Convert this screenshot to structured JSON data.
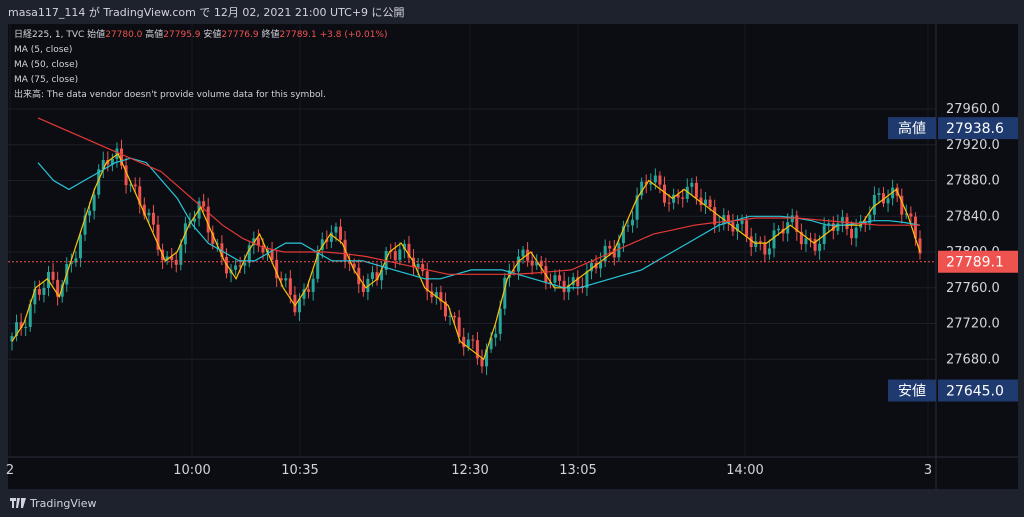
{
  "header": {
    "publish_line": "masa117_114 が TradingView.com で 12月 02, 2021 21:00 UTC+9 に公開"
  },
  "legend": {
    "symbol": "日経225, 1, TVC",
    "open_label": "始値",
    "open_value": "27780.0",
    "high_label": "高値",
    "high_value": "27795.9",
    "low_label": "安値",
    "low_value": "27776.9",
    "close_label": "終値",
    "close_value": "27789.1",
    "change": "+3.8 (+0.01%)",
    "ma1": "MA (5, close)",
    "ma2": "MA (50, close)",
    "ma3": "MA (75, close)",
    "volume_label": "出来高:",
    "volume_note": "The data vendor doesn't provide volume data for this symbol."
  },
  "price_axis": {
    "ticks": [
      "27960.0",
      "27920.0",
      "27880.0",
      "27840.0",
      "27800.0",
      "27760.0",
      "27720.0",
      "27680.0"
    ],
    "high_tag_label": "高値",
    "high_tag_value": "27938.6",
    "last_price": "27789.1",
    "low_tag_label": "安値",
    "low_tag_value": "27645.0"
  },
  "time_axis": {
    "labels": [
      "2",
      "10:00",
      "10:35",
      "12:30",
      "13:05",
      "14:00",
      "3"
    ]
  },
  "footer": {
    "brand": "TradingView"
  },
  "colors": {
    "up": "#26a69a",
    "down": "#ef5350",
    "ma5": "#ffc107",
    "ma50": "#26c6da",
    "ma75": "#e53935",
    "tag_bg": "#1e3a6e"
  },
  "chart_data": {
    "type": "line",
    "title": "日経225, 1, TVC",
    "ylim": [
      27640,
      27980
    ],
    "high": 27938.6,
    "low": 27645.0,
    "last": 27789.1,
    "x_ticks": [
      "2",
      "10:00",
      "10:35",
      "12:30",
      "13:05",
      "14:00",
      "3"
    ],
    "series": [
      {
        "name": "MA (5, close)",
        "values": [
          27700,
          27720,
          27760,
          27770,
          27750,
          27790,
          27830,
          27870,
          27900,
          27910,
          27880,
          27850,
          27820,
          27790,
          27800,
          27830,
          27850,
          27820,
          27790,
          27770,
          27800,
          27820,
          27790,
          27760,
          27740,
          27760,
          27800,
          27820,
          27810,
          27780,
          27760,
          27770,
          27800,
          27810,
          27790,
          27760,
          27750,
          27740,
          27700,
          27690,
          27680,
          27720,
          27770,
          27790,
          27800,
          27780,
          27760,
          27760,
          27770,
          27780,
          27790,
          27800,
          27830,
          27860,
          27880,
          27870,
          27860,
          27870,
          27860,
          27850,
          27840,
          27830,
          27820,
          27810,
          27810,
          27820,
          27830,
          27820,
          27810,
          27820,
          27830,
          27830,
          27830,
          27850,
          27860,
          27870,
          27840,
          27800
        ]
      },
      {
        "name": "MA (50, close)",
        "values": [
          27900,
          27880,
          27870,
          27880,
          27890,
          27900,
          27905,
          27900,
          27880,
          27860,
          27830,
          27810,
          27800,
          27790,
          27790,
          27800,
          27810,
          27810,
          27800,
          27790,
          27790,
          27790,
          27785,
          27780,
          27775,
          27770,
          27770,
          27775,
          27780,
          27780,
          27780,
          27775,
          27770,
          27765,
          27760,
          27760,
          27765,
          27770,
          27775,
          27780,
          27790,
          27800,
          27810,
          27820,
          27830,
          27835,
          27840,
          27840,
          27840,
          27838,
          27835,
          27830,
          27830,
          27832,
          27835,
          27835,
          27833,
          27830
        ]
      },
      {
        "name": "MA (75, close)",
        "values": [
          27950,
          27940,
          27930,
          27920,
          27910,
          27900,
          27890,
          27870,
          27850,
          27830,
          27815,
          27805,
          27800,
          27800,
          27800,
          27798,
          27795,
          27790,
          27785,
          27780,
          27775,
          27775,
          27775,
          27775,
          27776,
          27778,
          27780,
          27790,
          27800,
          27810,
          27820,
          27825,
          27830,
          27833,
          27835,
          27838,
          27838,
          27838,
          27836,
          27834,
          27832,
          27830,
          27830,
          27830
        ]
      }
    ]
  }
}
